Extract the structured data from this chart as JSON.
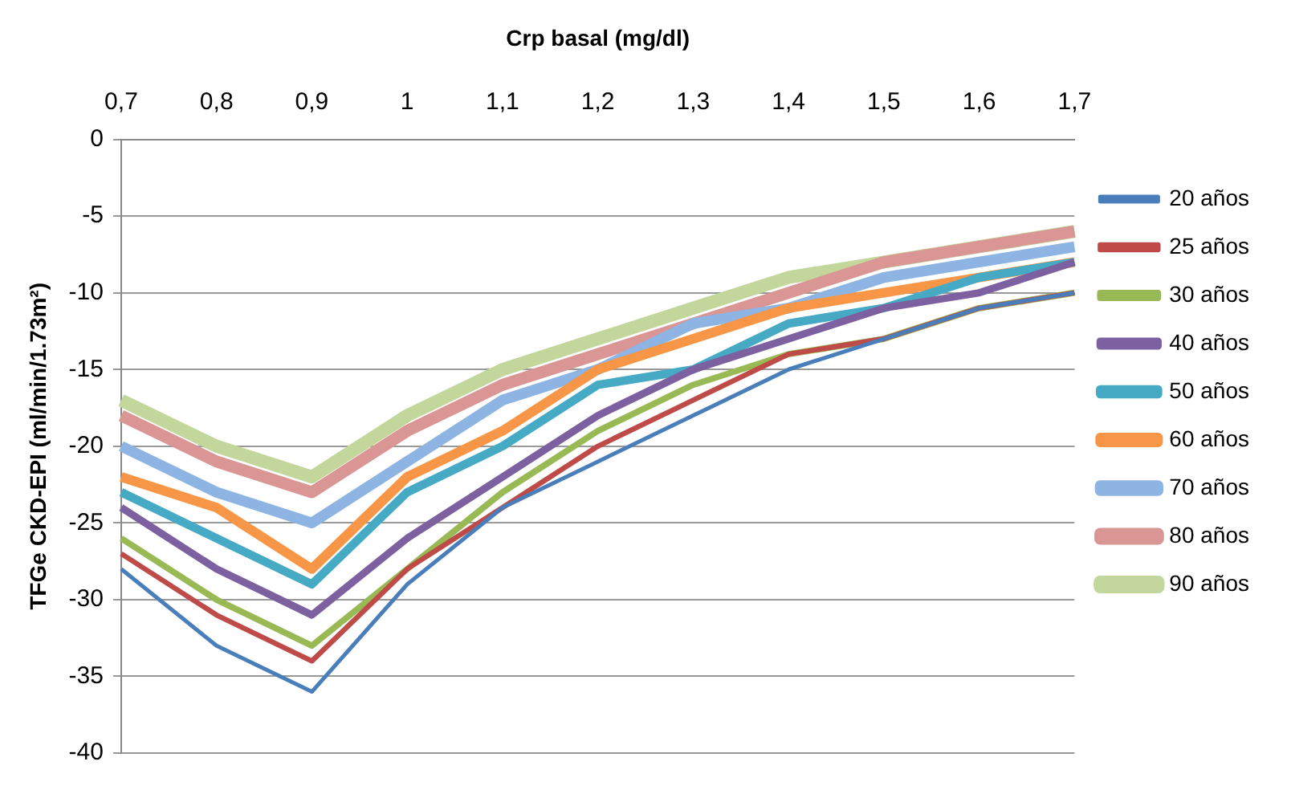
{
  "chart_data": {
    "type": "line",
    "xlabel": "Crp basal (mg/dl)",
    "ylabel": "TFGe CKD-EPI (ml/min/1.73m²)",
    "categories": [
      "0,7",
      "0,8",
      "0,9",
      "1",
      "1,1",
      "1,2",
      "1,3",
      "1,4",
      "1,5",
      "1,6",
      "1,7"
    ],
    "series": [
      {
        "name": "20 años",
        "color": "#4a7ebb",
        "values": [
          -28,
          -33,
          -36,
          -29,
          -24,
          -21,
          -18,
          -15,
          -13,
          -11,
          -10
        ]
      },
      {
        "name": "25 años",
        "color": "#be4b48",
        "values": [
          -27,
          -31,
          -34,
          -28,
          -24,
          -20,
          -17,
          -14,
          -13,
          -11,
          -10
        ]
      },
      {
        "name": "30 años",
        "color": "#98b954",
        "values": [
          -26,
          -30,
          -33,
          -28,
          -23,
          -19,
          -16,
          -14,
          -13,
          -11,
          -10
        ]
      },
      {
        "name": "40 años",
        "color": "#7d60a0",
        "values": [
          -24,
          -28,
          -31,
          -26,
          -22,
          -18,
          -15,
          -13,
          -11,
          -10,
          -8
        ]
      },
      {
        "name": "50 años",
        "color": "#46aac5",
        "values": [
          -23,
          -26,
          -29,
          -23,
          -20,
          -16,
          -15,
          -12,
          -11,
          -9,
          -8
        ]
      },
      {
        "name": "60 años",
        "color": "#f79646",
        "values": [
          -22,
          -24,
          -28,
          -22,
          -19,
          -15,
          -13,
          -11,
          -10,
          -9,
          -8
        ]
      },
      {
        "name": "70 años",
        "color": "#8eb4e3",
        "values": [
          -20,
          -23,
          -25,
          -21,
          -17,
          -15,
          -12,
          -11,
          -9,
          -8,
          -7
        ]
      },
      {
        "name": "80 años",
        "color": "#d99694",
        "values": [
          -18,
          -21,
          -23,
          -19,
          -16,
          -14,
          -12,
          -10,
          -8,
          -7,
          -6
        ]
      },
      {
        "name": "90 años",
        "color": "#c3d69b",
        "values": [
          -17,
          -20,
          -22,
          -18,
          -15,
          -13,
          -11,
          -9,
          -8,
          -7,
          -6
        ]
      }
    ],
    "ylim": [
      -40,
      0
    ],
    "yticks": [
      -40,
      -35,
      -30,
      -25,
      -20,
      -15,
      -10,
      -5,
      0
    ],
    "grid": "y",
    "legend": "right",
    "marker": "none",
    "line_style": "solid"
  }
}
